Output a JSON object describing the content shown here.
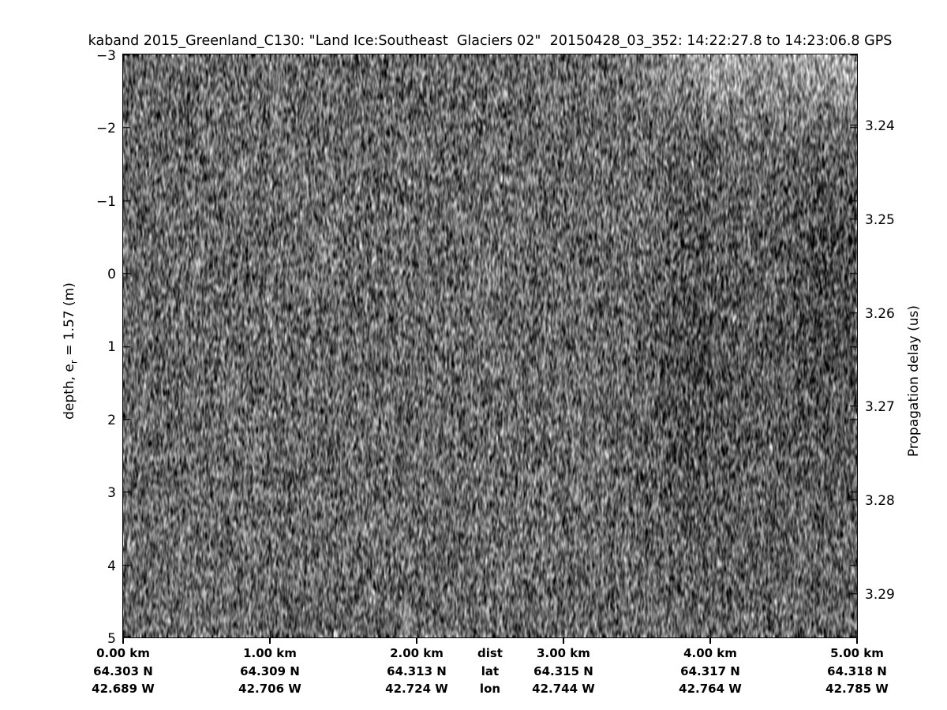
{
  "title": "kaband 2015_Greenland_C130: \"Land Ice:Southeast  Glaciers 02\"  20150428_03_352: 14:22:27.8 to 14:23:06.8 GPS",
  "left_axis": {
    "label_prefix": "depth, e",
    "label_sub": "r",
    "label_suffix": " = 1.57 (m)",
    "ticks": [
      "−3",
      "−2",
      "−1",
      "0",
      "1",
      "2",
      "3",
      "4",
      "5"
    ]
  },
  "right_axis": {
    "label": "Propagation delay (us)",
    "ticks": [
      "3.24",
      "3.25",
      "3.26",
      "3.27",
      "3.28",
      "3.29"
    ]
  },
  "bottom_axis": {
    "header": {
      "dist": "dist",
      "lat": "lat",
      "lon": "lon"
    },
    "columns": [
      {
        "km": "0.00 km",
        "lat": "64.303 N",
        "lon": "42.689 W"
      },
      {
        "km": "1.00 km",
        "lat": "64.309 N",
        "lon": "42.706 W"
      },
      {
        "km": "2.00 km",
        "lat": "64.313 N",
        "lon": "42.724 W"
      },
      {
        "km": "3.00 km",
        "lat": "64.315 N",
        "lon": "42.744 W"
      },
      {
        "km": "4.00 km",
        "lat": "64.317 N",
        "lon": "42.764 W"
      },
      {
        "km": "5.00 km",
        "lat": "64.318 N",
        "lon": "42.785 W"
      }
    ]
  },
  "colors": {
    "background": "#ffffff",
    "text": "#000000",
    "axis": "#000000",
    "colormap": "gray"
  },
  "chart_data": {
    "type": "heatmap",
    "title": "kaband 2015_Greenland_C130: \"Land Ice:Southeast  Glaciers 02\"  20150428_03_352: 14:22:27.8 to 14:23:06.8 GPS",
    "colormap": "gray",
    "xlim_km": [
      0,
      5
    ],
    "x_ticks_km": [
      0.0,
      1.0,
      2.0,
      3.0,
      4.0,
      5.0
    ],
    "x_tick_labels": [
      "0.00 km",
      "1.00 km",
      "2.00 km",
      "3.00 km",
      "4.00 km",
      "5.00 km"
    ],
    "x_row_headers": [
      "dist",
      "lat",
      "lon"
    ],
    "lat_ticks_deg_N": [
      64.303,
      64.309,
      64.313,
      64.315,
      64.317,
      64.318
    ],
    "lon_ticks_deg_W": [
      42.689,
      42.706,
      42.724,
      42.744,
      42.764,
      42.785
    ],
    "ylabel_left": "depth, e_r = 1.57 (m)",
    "ylim_left_m": [
      -3,
      5
    ],
    "y_ticks_left_m": [
      -3,
      -2,
      -1,
      0,
      1,
      2,
      3,
      4,
      5
    ],
    "ylabel_right": "Propagation delay (us)",
    "y_ticks_right_us": [
      3.24,
      3.25,
      3.26,
      3.27,
      3.28,
      3.29
    ],
    "grid": false,
    "legend": false,
    "content_description": "Ka-band radar altimeter echogram dominated by fine vertically-streaked speckle noise; brighter returns form a wedge along the top-right edge (x > ~3.5 km, depth < ~-1.5 m), with subtle darker vertical bands near x ~4.0 km and along the right edge between depths ~-1.5 m and ~3 m; no coherent layered reflectors visible."
  }
}
